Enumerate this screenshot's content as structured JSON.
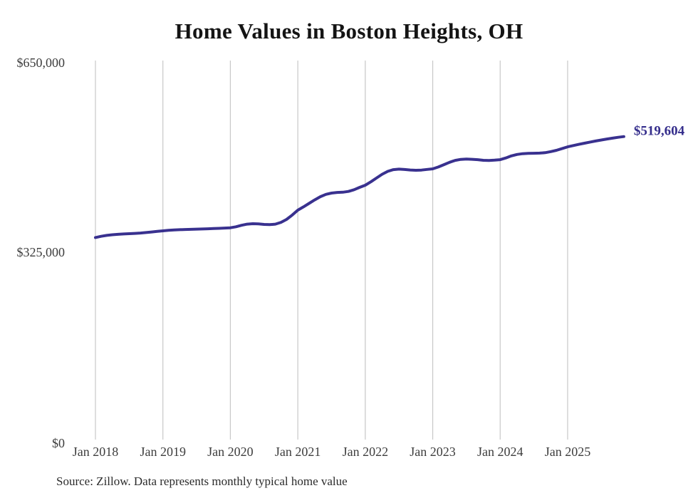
{
  "title": "Home Values in Boston Heights, OH",
  "source_note": "Source: Zillow. Data represents monthly typical home value",
  "colors": {
    "line": "#39318f",
    "end_label": "#352e8c",
    "grid": "#c8c8c8",
    "axis_text": "#3d3d3d",
    "title_text": "#141414",
    "source_text": "#2b2b2b",
    "background": "#ffffff"
  },
  "chart_data": {
    "type": "line",
    "title": "Home Values in Boston Heights, OH",
    "xlabel": "",
    "ylabel": "",
    "ylim": [
      0,
      650000
    ],
    "y_ticks": [
      0,
      325000,
      650000
    ],
    "y_tick_labels": [
      "$0",
      "$325,000",
      "$650,000"
    ],
    "x_tick_labels": [
      "Jan 2018",
      "Jan 2019",
      "Jan 2020",
      "Jan 2021",
      "Jan 2022",
      "Jan 2023",
      "Jan 2024",
      "Jan 2025"
    ],
    "grid": "vertical-only",
    "legend_position": "none",
    "start_month": "2018-01",
    "end_month": "2025-11",
    "end_value": 519604,
    "end_label": "$519,604",
    "series": [
      {
        "name": "Monthly typical home value",
        "values": [
          346500,
          348600,
          350200,
          351300,
          352000,
          352600,
          353100,
          353600,
          354200,
          355000,
          356000,
          357000,
          358000,
          358800,
          359400,
          359900,
          360300,
          360600,
          360900,
          361200,
          361500,
          361900,
          362300,
          362700,
          363200,
          365000,
          367500,
          369500,
          370200,
          369800,
          369000,
          368600,
          369500,
          372500,
          377500,
          385000,
          393400,
          399000,
          405000,
          411000,
          416500,
          420500,
          422800,
          423800,
          424200,
          425500,
          428500,
          432500,
          436200,
          442000,
          448500,
          455000,
          460000,
          463000,
          463800,
          463200,
          462300,
          461800,
          462200,
          463300,
          464300,
          467500,
          471500,
          475500,
          478800,
          480500,
          481000,
          480700,
          480000,
          479000,
          478600,
          479200,
          480000,
          483000,
          486500,
          489000,
          490300,
          490800,
          491000,
          491300,
          492000,
          493800,
          496000,
          499000,
          502000,
          504200,
          506300,
          508300,
          510200,
          512000,
          513800,
          515500,
          517000,
          518400,
          519604
        ]
      }
    ]
  }
}
